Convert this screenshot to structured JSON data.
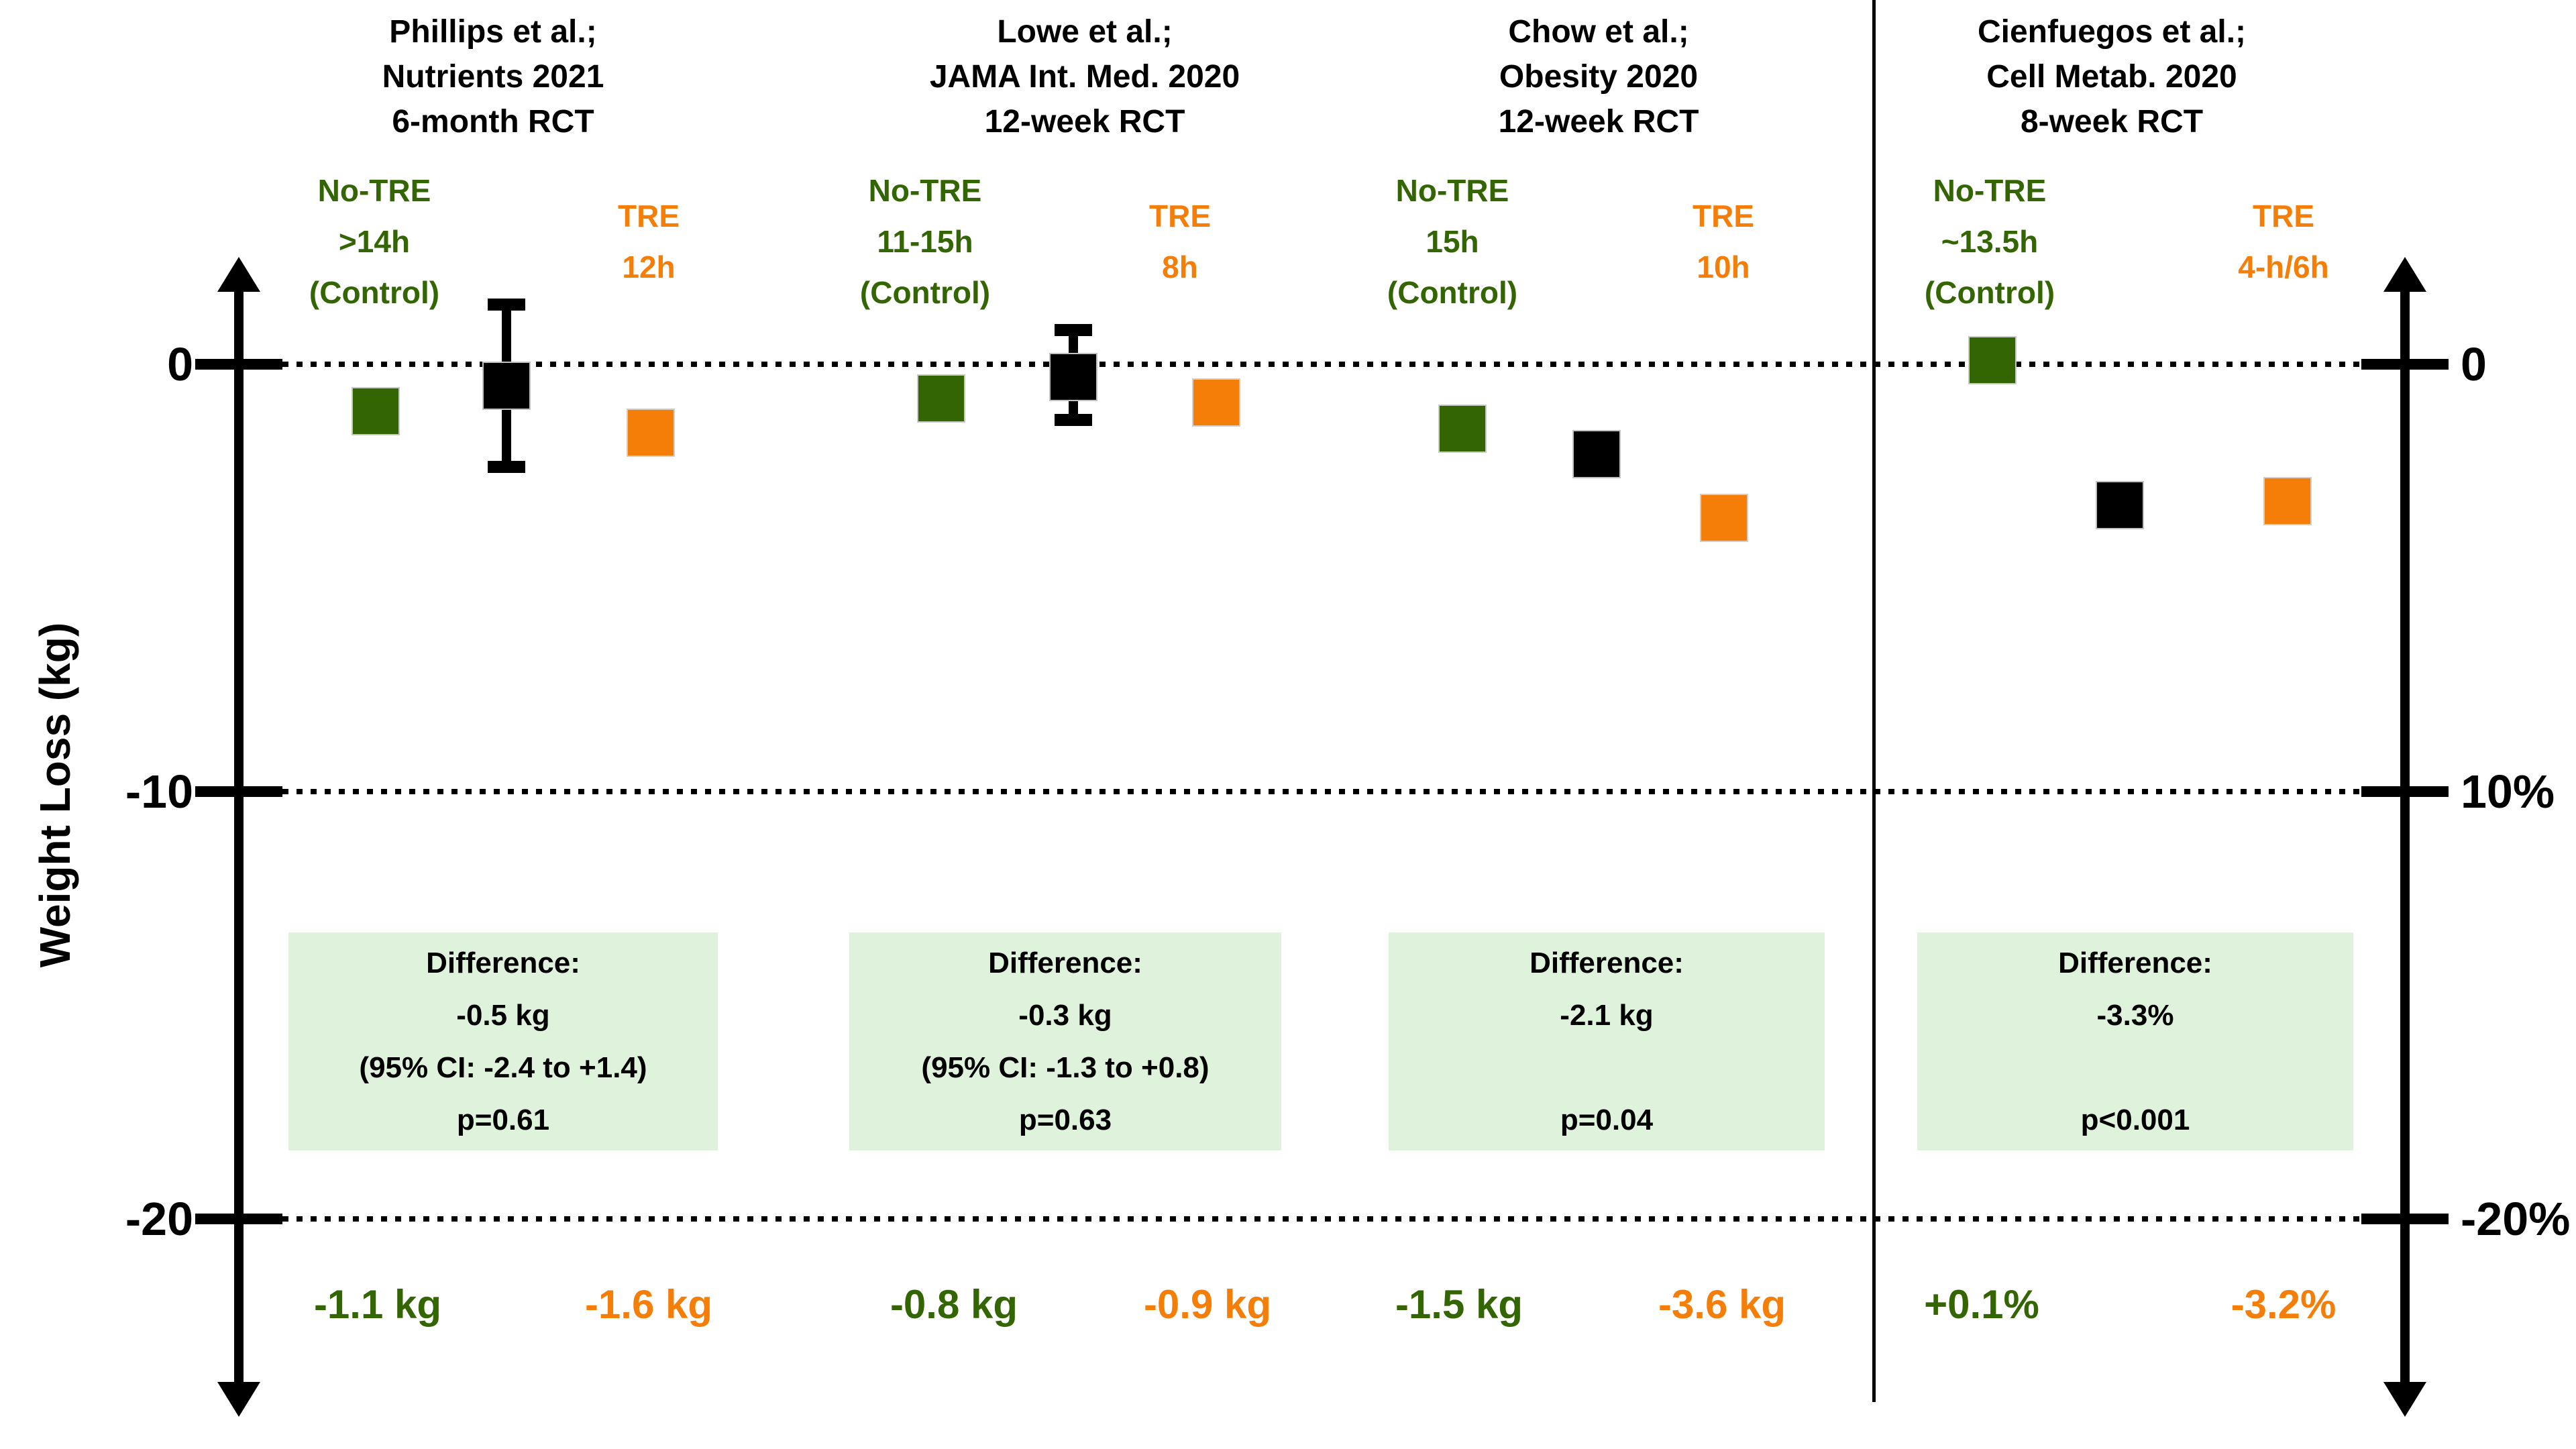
{
  "colors": {
    "control_green": "#336602",
    "tre_orange": "#F57E09",
    "marker_black": "#000000",
    "box_background": "#DEF2DC"
  },
  "chart_data": {
    "type": "scatter",
    "title": "",
    "ylabel": "Weight Loss (kg)",
    "ylim": [
      -24,
      2.5
    ],
    "grid": "dotted horizontal gridlines at 0, -10, -20 spanning both axes",
    "legend_position": "labels above each study column",
    "left_axis_ticks": [
      {
        "label": "0",
        "value": 0
      },
      {
        "label": "-10",
        "value": -10
      },
      {
        "label": "-20",
        "value": -20
      }
    ],
    "right_axis_ticks": [
      {
        "label": "0",
        "value": 0
      },
      {
        "label": "10%",
        "value": -10
      },
      {
        "label": "-20%",
        "value": -20
      }
    ],
    "studies": [
      {
        "header": [
          "Phillips et al.;",
          "Nutrients 2021",
          "6-month RCT"
        ],
        "control_label": [
          "No-TRE",
          ">14h",
          "(Control)"
        ],
        "tre_label": [
          "TRE",
          "12h"
        ],
        "points": {
          "control": -1.1,
          "difference": -0.5,
          "tre": -1.6
        },
        "ci": [
          -2.4,
          1.4
        ],
        "difference_box": [
          "Difference:",
          "-0.5 kg",
          "(95% CI: -2.4 to +1.4)",
          "p=0.61"
        ],
        "control_value_label": "-1.1 kg",
        "tre_value_label": "-1.6 kg",
        "units": "kg"
      },
      {
        "header": [
          "Lowe et al.;",
          "JAMA Int. Med. 2020",
          "12-week RCT"
        ],
        "control_label": [
          "No-TRE",
          "11-15h",
          "(Control)"
        ],
        "tre_label": [
          "TRE",
          "8h"
        ],
        "points": {
          "control": -0.8,
          "difference": -0.3,
          "tre": -0.9
        },
        "ci": [
          -1.3,
          0.8
        ],
        "difference_box": [
          "Difference:",
          "-0.3 kg",
          "(95% CI: -1.3 to +0.8)",
          "p=0.63"
        ],
        "control_value_label": "-0.8 kg",
        "tre_value_label": "-0.9 kg",
        "units": "kg"
      },
      {
        "header": [
          "Chow et al.;",
          "Obesity 2020",
          "12-week RCT"
        ],
        "control_label": [
          "No-TRE",
          "15h",
          "(Control)"
        ],
        "tre_label": [
          "TRE",
          "10h"
        ],
        "points": {
          "control": -1.5,
          "difference": -2.1,
          "tre": -3.6
        },
        "ci": null,
        "difference_box": [
          "Difference:",
          "-2.1 kg",
          "",
          "p=0.04"
        ],
        "control_value_label": "-1.5 kg",
        "tre_value_label": "-3.6 kg",
        "units": "kg"
      },
      {
        "header": [
          "Cienfuegos et al.;",
          "Cell Metab. 2020",
          "8-week RCT"
        ],
        "control_label": [
          "No-TRE",
          "~13.5h",
          "(Control)"
        ],
        "tre_label": [
          "TRE",
          "4-h/6h"
        ],
        "points": {
          "control": 0.1,
          "difference": -3.3,
          "tre": -3.2
        },
        "ci": null,
        "difference_box": [
          "Difference:",
          "-3.3%",
          "",
          "p<0.001"
        ],
        "control_value_label": "+0.1%",
        "tre_value_label": "-3.2%",
        "units": "%"
      }
    ]
  }
}
